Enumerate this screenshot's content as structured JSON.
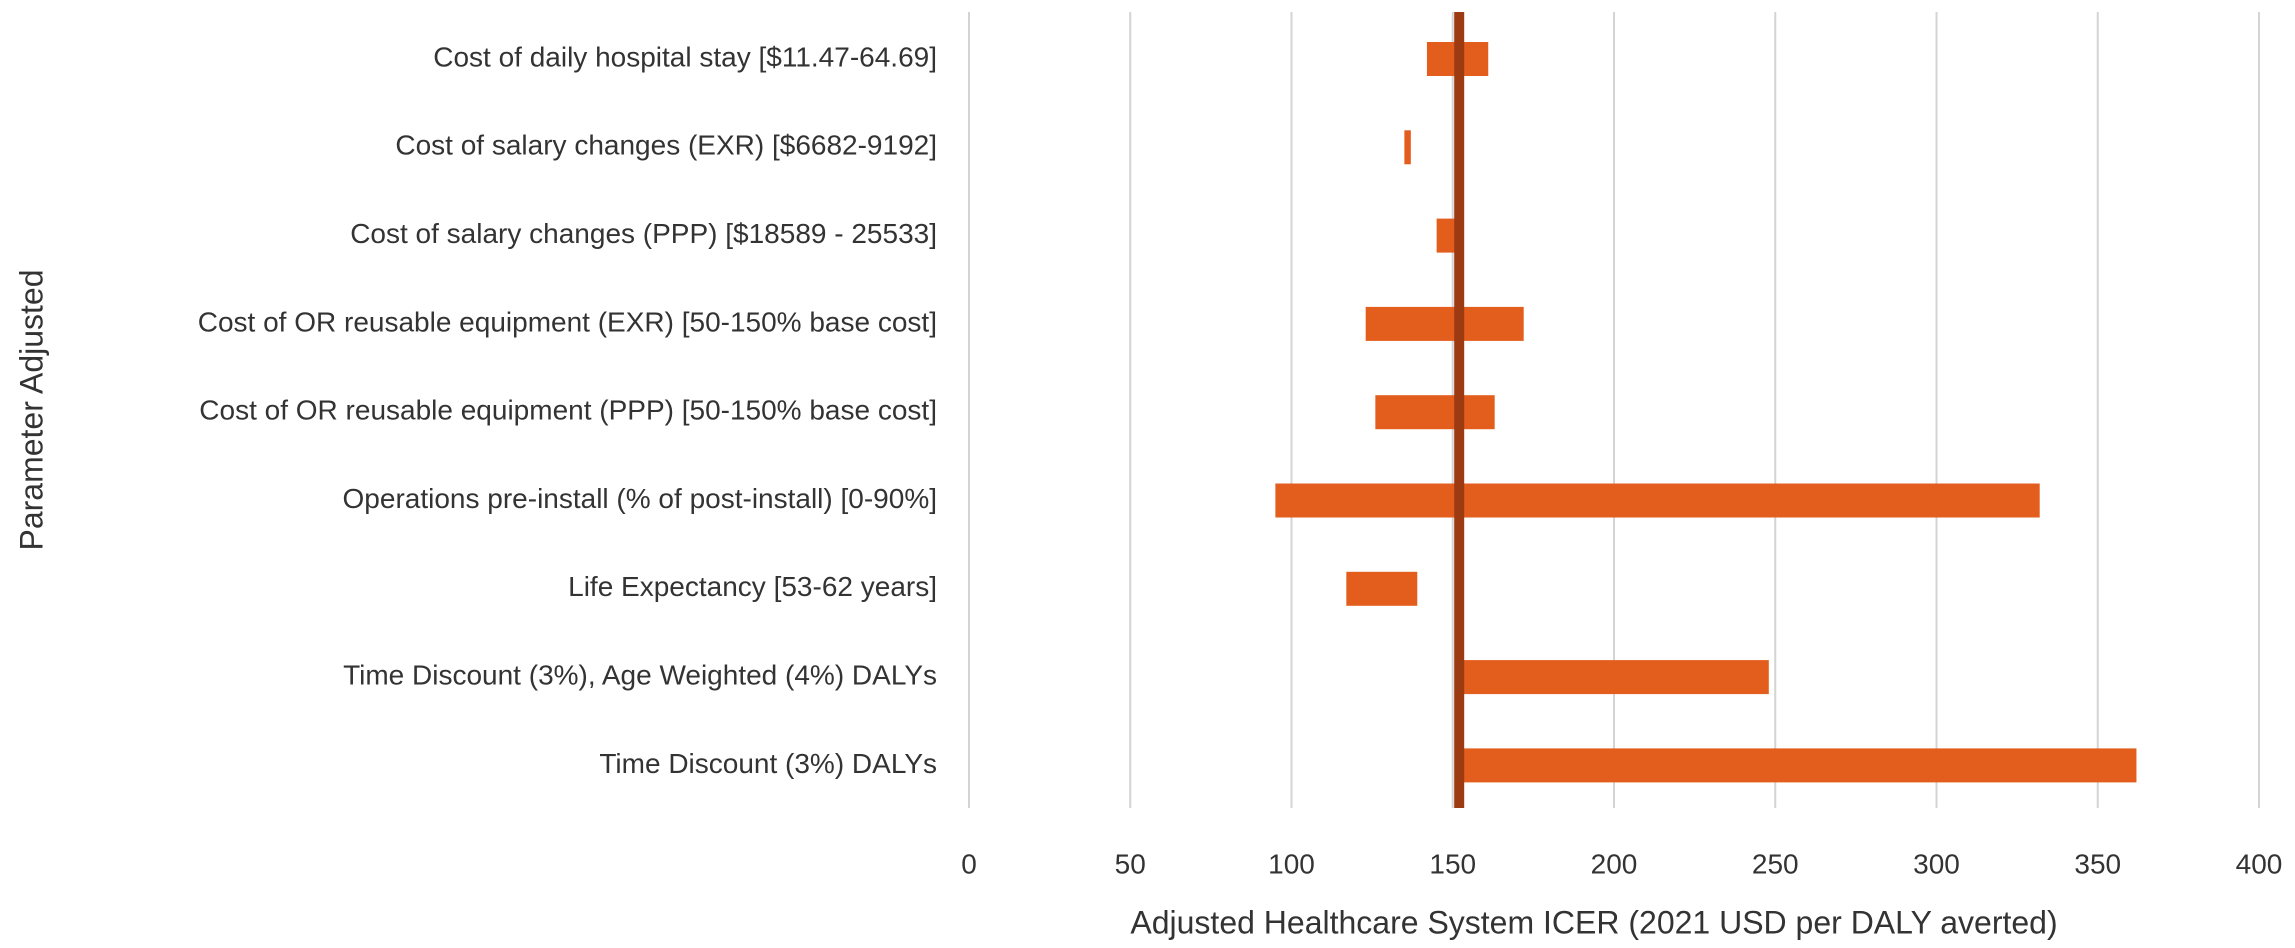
{
  "chart_data": {
    "type": "bar",
    "orientation": "horizontal",
    "variant": "tornado",
    "xlabel": "Adjusted Healthcare System ICER  (2021 USD per DALY averted)",
    "ylabel": "Parameter Adjusted",
    "xlim": [
      0,
      400
    ],
    "xticks": [
      0,
      50,
      100,
      150,
      200,
      250,
      300,
      350,
      400
    ],
    "xtick_labels": [
      "0",
      "50",
      "100",
      "150",
      "200",
      "250",
      "300",
      "350",
      "400"
    ],
    "grid": "vertical",
    "legend": "none",
    "base_value": 152,
    "bar_color": "#e35d1c",
    "base_line_color": "#9c3a12",
    "categories": [
      "Cost of daily hospital stay [$11.47-64.69]",
      "Cost of salary changes (EXR) [$6682-9192]",
      "Cost of salary changes (PPP) [$18589 - 25533]",
      "Cost of OR reusable equipment (EXR) [50-150% base cost]",
      "Cost of OR reusable equipment (PPP) [50-150% base cost]",
      "Operations pre-install (% of post-install) [0-90%]",
      "Life Expectancy [53-62 years]",
      "Time Discount (3%), Age Weighted (4%) DALYs",
      "Time Discount (3%) DALYs"
    ],
    "ranges": [
      [
        142,
        161
      ],
      [
        135,
        137
      ],
      [
        145,
        152
      ],
      [
        123,
        172
      ],
      [
        126,
        163
      ],
      [
        95,
        332
      ],
      [
        117,
        139
      ],
      [
        152,
        248
      ],
      [
        152,
        362
      ]
    ]
  }
}
